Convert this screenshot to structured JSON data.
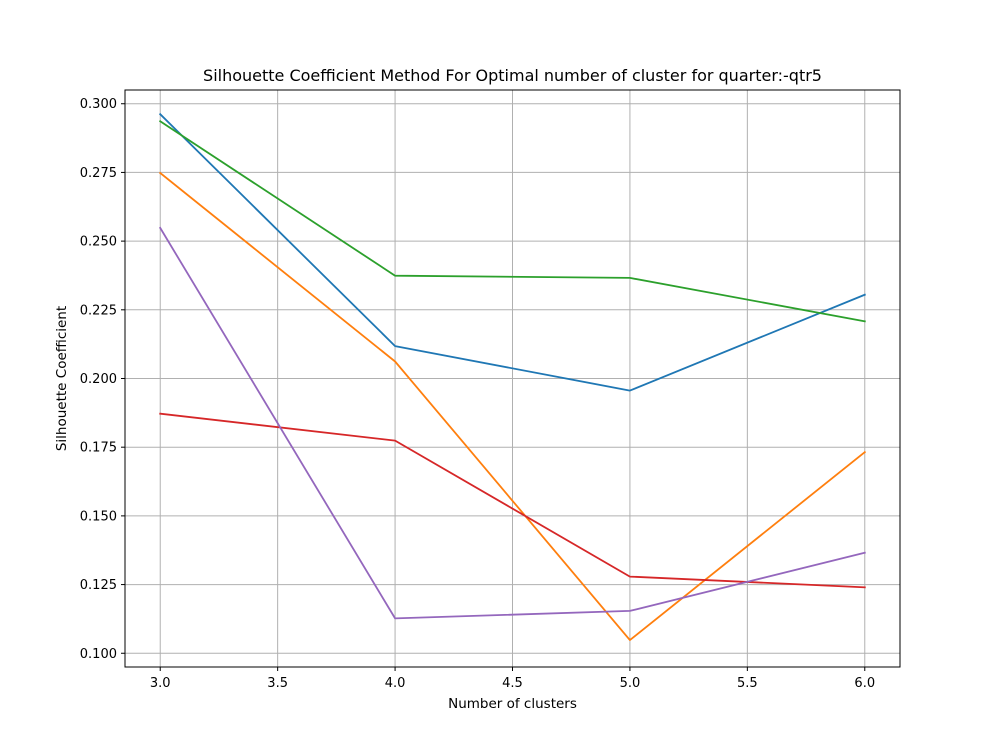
{
  "chart_data": {
    "type": "line",
    "title": "Silhouette Coefficient Method For Optimal number of cluster for quarter:-qtr5",
    "xlabel": "Number of clusters",
    "ylabel": "Silhouette Coefficient",
    "x": [
      3,
      4,
      5,
      6
    ],
    "xlim": [
      2.85,
      6.15
    ],
    "ylim": [
      0.095,
      0.305
    ],
    "xticks": [
      3.0,
      3.5,
      4.0,
      4.5,
      5.0,
      5.5,
      6.0
    ],
    "xtick_labels": [
      "3.0",
      "3.5",
      "4.0",
      "4.5",
      "5.0",
      "5.5",
      "6.0"
    ],
    "yticks": [
      0.1,
      0.125,
      0.15,
      0.175,
      0.2,
      0.225,
      0.25,
      0.275,
      0.3
    ],
    "ytick_labels": [
      "0.100",
      "0.125",
      "0.150",
      "0.175",
      "0.200",
      "0.225",
      "0.250",
      "0.275",
      "0.300"
    ],
    "grid": true,
    "legend": "none",
    "series": [
      {
        "color": "#1f77b4",
        "values": [
          0.2962,
          0.2118,
          0.1956,
          0.2305
        ]
      },
      {
        "color": "#ff7f0e",
        "values": [
          0.2748,
          0.2062,
          0.1048,
          0.1732
        ]
      },
      {
        "color": "#2ca02c",
        "values": [
          0.2936,
          0.2374,
          0.2366,
          0.2208
        ]
      },
      {
        "color": "#d62728",
        "values": [
          0.1872,
          0.1774,
          0.1279,
          0.124
        ]
      },
      {
        "color": "#9467bd",
        "values": [
          0.2548,
          0.1127,
          0.1154,
          0.1366
        ]
      }
    ]
  }
}
